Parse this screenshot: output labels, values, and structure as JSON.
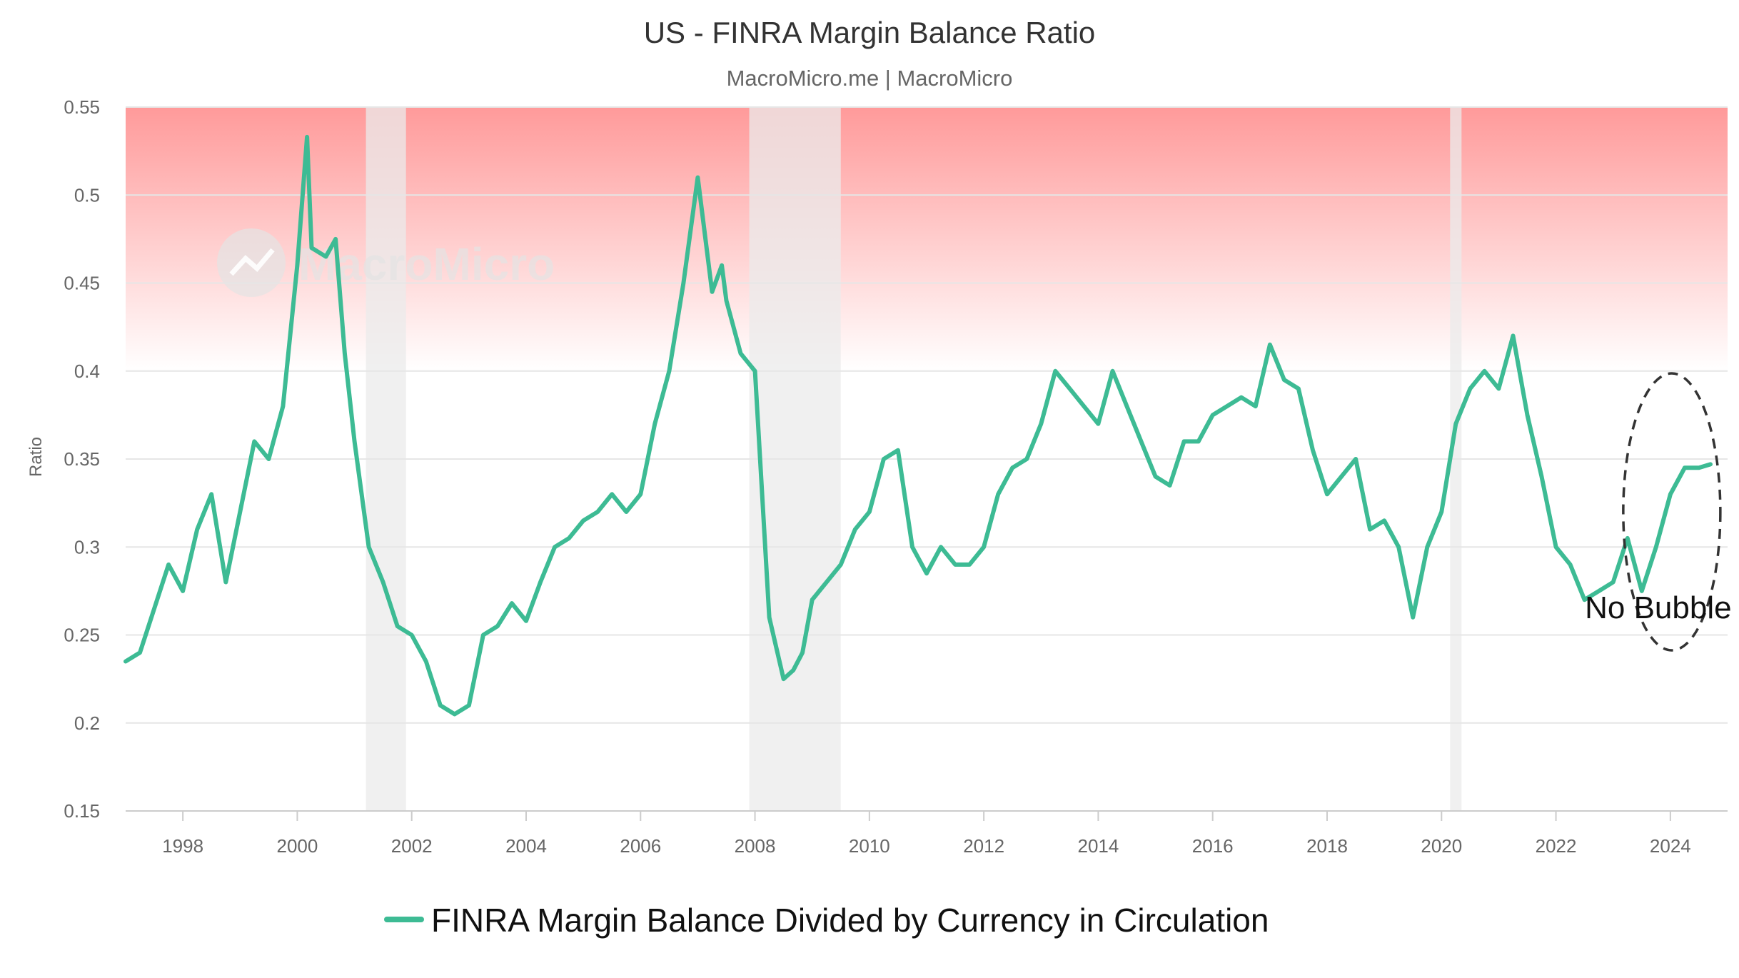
{
  "chart_data": {
    "type": "line",
    "title": "US - FINRA Margin Balance Ratio",
    "subtitle": "MacroMicro.me | MacroMicro",
    "watermark": "MacroMicro",
    "ylabel": "Ratio",
    "xlabel": "",
    "ylim": [
      0.15,
      0.55
    ],
    "xlim": [
      1997.0,
      2025.0
    ],
    "y_ticks": [
      "0.15",
      "0.2",
      "0.25",
      "0.3",
      "0.35",
      "0.4",
      "0.45",
      "0.5",
      "0.55"
    ],
    "x_ticks": [
      "1998",
      "2000",
      "2002",
      "2004",
      "2006",
      "2008",
      "2010",
      "2012",
      "2014",
      "2016",
      "2018",
      "2020",
      "2022",
      "2024"
    ],
    "grid": true,
    "legend_position": "bottom-center",
    "danger_zone": {
      "from": 0.4,
      "to": 0.55,
      "color": "#ff9a9a"
    },
    "recessions": [
      [
        2001.2,
        2001.9
      ],
      [
        2007.9,
        2009.5
      ],
      [
        2020.15,
        2020.35
      ]
    ],
    "series": [
      {
        "name": "FINRA Margin Balance Divided by Currency in Circulation",
        "color": "#3dbb94",
        "x": [
          1997.0,
          1997.25,
          1997.5,
          1997.75,
          1998.0,
          1998.25,
          1998.5,
          1998.75,
          1999.0,
          1999.25,
          1999.5,
          1999.75,
          2000.0,
          2000.17,
          2000.25,
          2000.5,
          2000.67,
          2000.83,
          2001.0,
          2001.25,
          2001.5,
          2001.75,
          2002.0,
          2002.25,
          2002.5,
          2002.75,
          2003.0,
          2003.25,
          2003.5,
          2003.75,
          2004.0,
          2004.25,
          2004.5,
          2004.75,
          2005.0,
          2005.25,
          2005.5,
          2005.75,
          2006.0,
          2006.25,
          2006.5,
          2006.75,
          2007.0,
          2007.25,
          2007.42,
          2007.5,
          2007.75,
          2008.0,
          2008.25,
          2008.5,
          2008.67,
          2008.83,
          2009.0,
          2009.25,
          2009.5,
          2009.75,
          2010.0,
          2010.25,
          2010.5,
          2010.75,
          2011.0,
          2011.25,
          2011.5,
          2011.75,
          2012.0,
          2012.25,
          2012.5,
          2012.75,
          2013.0,
          2013.25,
          2013.5,
          2013.75,
          2014.0,
          2014.25,
          2014.5,
          2014.75,
          2015.0,
          2015.25,
          2015.5,
          2015.75,
          2016.0,
          2016.25,
          2016.5,
          2016.75,
          2017.0,
          2017.25,
          2017.5,
          2017.75,
          2018.0,
          2018.25,
          2018.5,
          2018.75,
          2019.0,
          2019.25,
          2019.5,
          2019.75,
          2020.0,
          2020.25,
          2020.5,
          2020.75,
          2021.0,
          2021.25,
          2021.5,
          2021.75,
          2022.0,
          2022.25,
          2022.5,
          2022.75,
          2023.0,
          2023.25,
          2023.5,
          2023.75,
          2024.0,
          2024.25,
          2024.5,
          2024.7
        ],
        "values": [
          0.235,
          0.24,
          0.265,
          0.29,
          0.275,
          0.31,
          0.33,
          0.28,
          0.32,
          0.36,
          0.35,
          0.38,
          0.46,
          0.533,
          0.47,
          0.465,
          0.475,
          0.41,
          0.36,
          0.3,
          0.28,
          0.255,
          0.25,
          0.235,
          0.21,
          0.205,
          0.21,
          0.25,
          0.255,
          0.268,
          0.258,
          0.28,
          0.3,
          0.305,
          0.315,
          0.32,
          0.33,
          0.32,
          0.33,
          0.37,
          0.4,
          0.45,
          0.51,
          0.445,
          0.46,
          0.44,
          0.41,
          0.4,
          0.26,
          0.225,
          0.23,
          0.24,
          0.27,
          0.28,
          0.29,
          0.31,
          0.32,
          0.35,
          0.355,
          0.3,
          0.285,
          0.3,
          0.29,
          0.29,
          0.3,
          0.33,
          0.345,
          0.35,
          0.37,
          0.4,
          0.39,
          0.38,
          0.37,
          0.4,
          0.38,
          0.36,
          0.34,
          0.335,
          0.36,
          0.36,
          0.375,
          0.38,
          0.385,
          0.38,
          0.415,
          0.395,
          0.39,
          0.355,
          0.33,
          0.34,
          0.35,
          0.31,
          0.315,
          0.3,
          0.26,
          0.3,
          0.32,
          0.37,
          0.39,
          0.4,
          0.39,
          0.42,
          0.375,
          0.34,
          0.3,
          0.29,
          0.27,
          0.275,
          0.28,
          0.305,
          0.275,
          0.3,
          0.33,
          0.345,
          0.345,
          0.347
        ]
      }
    ],
    "annotations": [
      {
        "text": "No Bubble",
        "x": 2024.0,
        "y": 0.32,
        "shape": "dashed-ellipse"
      }
    ]
  }
}
